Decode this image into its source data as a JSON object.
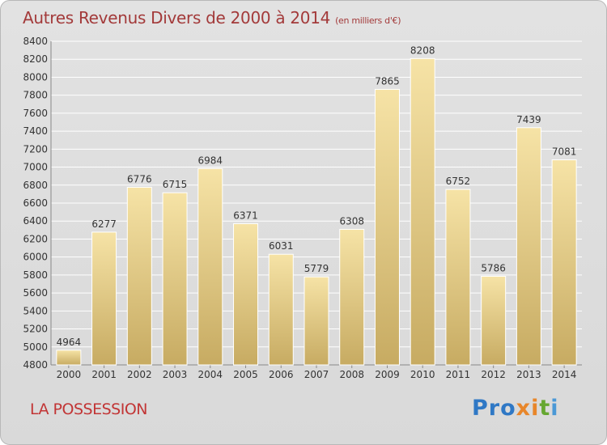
{
  "title": {
    "main": "Autres Revenus Divers de 2000 à 2014",
    "unit": "(en milliers d'€)"
  },
  "location": "LA POSSESSION",
  "brand": {
    "letters": [
      "Pro",
      "x",
      "i",
      "t",
      "i"
    ],
    "colors": [
      "#2f78c5",
      "#e8862a",
      "#66a731",
      "#4a98d6"
    ]
  },
  "colors": {
    "bar_top": "#f6e3a6",
    "bar_bottom": "#c7ab62",
    "grid": "#ffffff",
    "title": "#a33a3a",
    "location": "#c23535"
  },
  "chart_data": {
    "type": "bar",
    "title": "Autres Revenus Divers de 2000 à 2014",
    "subtitle": "(en milliers d'€)",
    "xlabel": "",
    "ylabel": "",
    "categories": [
      "2000",
      "2001",
      "2002",
      "2003",
      "2004",
      "2005",
      "2006",
      "2007",
      "2008",
      "2009",
      "2010",
      "2011",
      "2012",
      "2013",
      "2014"
    ],
    "values": [
      4964,
      6277,
      6776,
      6715,
      6984,
      6371,
      6031,
      5779,
      6308,
      7865,
      8208,
      6752,
      5786,
      7439,
      7081
    ],
    "ylim": [
      4800,
      8400
    ],
    "yticks": [
      4800,
      5000,
      5200,
      5400,
      5600,
      5800,
      6000,
      6200,
      6400,
      6600,
      6800,
      7000,
      7200,
      7400,
      7600,
      7800,
      8000,
      8200,
      8400
    ],
    "grid": true,
    "legend": "none"
  }
}
